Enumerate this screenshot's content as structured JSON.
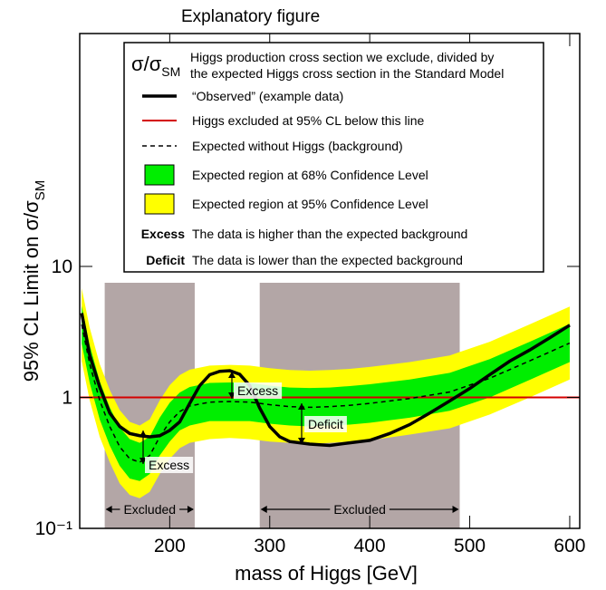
{
  "chart_data": {
    "type": "line",
    "title": "Explanatory figure",
    "xlabel": "mass of Higgs [GeV]",
    "ylabel": "95% CL Limit on σ/σ",
    "ylabel_sub": "SM",
    "log_y": true,
    "xlim": [
      110,
      610
    ],
    "ylim": [
      0.1,
      600
    ],
    "xticks": [
      200,
      300,
      400,
      500,
      600
    ],
    "yticks": [
      {
        "value": 0.1,
        "label": "10⁻¹"
      },
      1,
      10
    ],
    "reference": {
      "name": "Higgs excluded at 95% CL below this line",
      "value": 1,
      "color": "#d40000"
    },
    "excluded": [
      {
        "label": "Excluded",
        "range": [
          135,
          225
        ]
      },
      {
        "label": "Excluded",
        "range": [
          290,
          490
        ]
      }
    ],
    "x": [
      112,
      120,
      130,
      140,
      150,
      160,
      170,
      180,
      190,
      200,
      210,
      220,
      240,
      260,
      280,
      300,
      320,
      340,
      360,
      380,
      400,
      440,
      480,
      520,
      560,
      600
    ],
    "bands": [
      {
        "name": "Expected region at 95% Confidence Level",
        "color": "#ffff00",
        "lower": [
          1.89,
          0.95,
          0.5,
          0.32,
          0.22,
          0.18,
          0.17,
          0.19,
          0.26,
          0.34,
          0.41,
          0.45,
          0.48,
          0.49,
          0.48,
          0.46,
          0.45,
          0.44,
          0.45,
          0.46,
          0.47,
          0.52,
          0.58,
          0.74,
          1.0,
          1.37
        ],
        "upper": [
          6.8,
          3.4,
          1.8,
          1.14,
          0.8,
          0.65,
          0.61,
          0.68,
          0.95,
          1.24,
          1.48,
          1.63,
          1.75,
          1.77,
          1.75,
          1.67,
          1.62,
          1.6,
          1.62,
          1.65,
          1.71,
          1.86,
          2.09,
          2.66,
          3.61,
          4.94
        ]
      },
      {
        "name": "Expected region at 68% Confidence Level",
        "color": "#00ee00",
        "lower": [
          2.57,
          1.29,
          0.68,
          0.43,
          0.3,
          0.24,
          0.23,
          0.26,
          0.36,
          0.46,
          0.56,
          0.61,
          0.66,
          0.66,
          0.66,
          0.63,
          0.61,
          0.6,
          0.61,
          0.62,
          0.64,
          0.7,
          0.79,
          1.0,
          1.36,
          1.86
        ],
        "upper": [
          5.0,
          2.5,
          1.33,
          0.84,
          0.59,
          0.48,
          0.45,
          0.5,
          0.7,
          0.91,
          1.09,
          1.2,
          1.29,
          1.3,
          1.29,
          1.23,
          1.19,
          1.18,
          1.19,
          1.22,
          1.26,
          1.37,
          1.54,
          1.96,
          2.66,
          3.64
        ]
      }
    ],
    "series": [
      {
        "name": "“Observed” (example data)",
        "color": "#000000",
        "dashed": false,
        "x": [
          112,
          120,
          130,
          140,
          150,
          160,
          170,
          180,
          190,
          200,
          210,
          220,
          230,
          240,
          250,
          260,
          270,
          280,
          290,
          300,
          310,
          320,
          340,
          360,
          380,
          400,
          420,
          440,
          460,
          480,
          500,
          520,
          540,
          560,
          580,
          600
        ],
        "values": [
          4.4,
          2.1,
          1.2,
          0.76,
          0.6,
          0.53,
          0.51,
          0.5,
          0.51,
          0.56,
          0.65,
          0.9,
          1.23,
          1.49,
          1.58,
          1.6,
          1.5,
          1.23,
          0.83,
          0.6,
          0.5,
          0.46,
          0.44,
          0.43,
          0.45,
          0.47,
          0.53,
          0.62,
          0.76,
          0.94,
          1.17,
          1.49,
          1.89,
          2.3,
          2.85,
          3.56
        ]
      },
      {
        "name": "Expected without Higgs  (background)",
        "color": "#000000",
        "dashed": true,
        "x": [
          112,
          120,
          130,
          140,
          150,
          160,
          170,
          180,
          190,
          200,
          210,
          220,
          240,
          260,
          280,
          300,
          320,
          340,
          360,
          380,
          400,
          440,
          480,
          520,
          560,
          600
        ],
        "values": [
          3.6,
          1.8,
          0.95,
          0.6,
          0.42,
          0.34,
          0.32,
          0.36,
          0.5,
          0.65,
          0.78,
          0.86,
          0.92,
          0.93,
          0.92,
          0.88,
          0.85,
          0.84,
          0.85,
          0.87,
          0.9,
          0.98,
          1.1,
          1.4,
          1.9,
          2.6
        ]
      }
    ],
    "legend": {
      "symbol": "σ/σ",
      "symbol_sub": "SM",
      "description": [
        "Higgs production cross section we exclude, divided by",
        "the expected Higgs cross section in the Standard Model"
      ],
      "notes": [
        {
          "key": "Excess",
          "text": "The data is higher than the expected background"
        },
        {
          "key": "Deficit",
          "text": "The data is lower than the expected background"
        }
      ]
    },
    "annotations": [
      "Excess",
      "Excess",
      "Deficit"
    ]
  }
}
